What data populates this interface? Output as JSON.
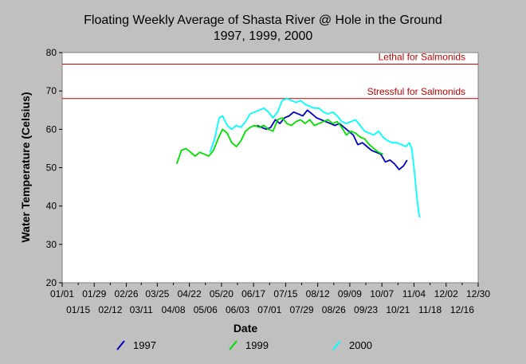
{
  "chart_data": {
    "type": "line",
    "title": "Floating Weekly Average of Shasta River @ Hole in the Ground",
    "subtitle": "1997, 1999, 2000",
    "xlabel": "Date",
    "ylabel": "Water Temperature (Celsius)",
    "x_axis": "day of year (MM/DD)",
    "xlim": [
      "01/01",
      "12/30"
    ],
    "ylim": [
      20,
      80
    ],
    "y_ticks": [
      20,
      30,
      40,
      50,
      60,
      70,
      80
    ],
    "x_ticks_top": [
      "01/01",
      "01/29",
      "02/26",
      "03/25",
      "04/22",
      "05/20",
      "06/17",
      "07/15",
      "08/12",
      "09/09",
      "10/07",
      "11/04",
      "12/02",
      "12/30"
    ],
    "x_ticks_bottom": [
      "01/15",
      "02/12",
      "03/11",
      "04/08",
      "05/06",
      "06/03",
      "07/01",
      "07/29",
      "08/26",
      "09/23",
      "10/21",
      "11/18",
      "12/16"
    ],
    "grid": false,
    "legend_position": "bottom",
    "reference_lines": [
      {
        "label": "Lethal for Salmonids",
        "y": 77,
        "color": "#cc0000"
      },
      {
        "label": "Stressful for Salmonids",
        "y": 68,
        "color": "#cc0000"
      }
    ],
    "series": [
      {
        "name": "1997",
        "color": "#0000c0",
        "points": [
          [
            "06/20",
            61.0
          ],
          [
            "06/24",
            60.5
          ],
          [
            "06/28",
            60.0
          ],
          [
            "07/02",
            60.5
          ],
          [
            "07/06",
            62.5
          ],
          [
            "07/10",
            61.5
          ],
          [
            "07/14",
            63.0
          ],
          [
            "07/18",
            63.5
          ],
          [
            "07/22",
            64.5
          ],
          [
            "07/26",
            64.0
          ],
          [
            "07/30",
            63.5
          ],
          [
            "08/03",
            65.0
          ],
          [
            "08/07",
            64.0
          ],
          [
            "08/11",
            63.0
          ],
          [
            "08/15",
            62.5
          ],
          [
            "08/19",
            62.0
          ],
          [
            "08/23",
            61.5
          ],
          [
            "08/27",
            61.0
          ],
          [
            "08/31",
            61.5
          ],
          [
            "09/04",
            60.5
          ],
          [
            "09/08",
            59.5
          ],
          [
            "09/12",
            58.5
          ],
          [
            "09/16",
            56.0
          ],
          [
            "09/20",
            56.5
          ],
          [
            "09/24",
            55.5
          ],
          [
            "09/28",
            54.5
          ],
          [
            "10/02",
            54.0
          ],
          [
            "10/06",
            53.5
          ],
          [
            "10/10",
            51.5
          ],
          [
            "10/14",
            52.0
          ],
          [
            "10/18",
            51.0
          ],
          [
            "10/22",
            49.5
          ],
          [
            "10/26",
            50.5
          ],
          [
            "10/29",
            52.0
          ]
        ]
      },
      {
        "name": "1999",
        "color": "#00e000",
        "points": [
          [
            "04/11",
            51.0
          ],
          [
            "04/15",
            54.5
          ],
          [
            "04/19",
            55.0
          ],
          [
            "04/23",
            54.0
          ],
          [
            "04/27",
            53.0
          ],
          [
            "05/01",
            54.0
          ],
          [
            "05/05",
            53.5
          ],
          [
            "05/09",
            53.0
          ],
          [
            "05/13",
            54.5
          ],
          [
            "05/17",
            57.5
          ],
          [
            "05/21",
            60.0
          ],
          [
            "05/25",
            59.0
          ],
          [
            "05/29",
            56.5
          ],
          [
            "06/02",
            55.5
          ],
          [
            "06/06",
            57.0
          ],
          [
            "06/10",
            59.5
          ],
          [
            "06/14",
            60.5
          ],
          [
            "06/18",
            61.0
          ],
          [
            "06/22",
            60.5
          ],
          [
            "06/26",
            61.0
          ],
          [
            "06/30",
            60.0
          ],
          [
            "07/04",
            59.5
          ],
          [
            "07/08",
            62.5
          ],
          [
            "07/12",
            63.0
          ],
          [
            "07/16",
            61.5
          ],
          [
            "07/20",
            61.0
          ],
          [
            "07/24",
            62.0
          ],
          [
            "07/28",
            62.5
          ],
          [
            "08/01",
            61.5
          ],
          [
            "08/05",
            62.5
          ],
          [
            "08/09",
            61.0
          ],
          [
            "08/13",
            61.5
          ],
          [
            "08/17",
            62.0
          ],
          [
            "08/21",
            62.5
          ],
          [
            "08/25",
            61.5
          ],
          [
            "08/29",
            62.0
          ],
          [
            "09/02",
            60.5
          ],
          [
            "09/06",
            58.5
          ],
          [
            "09/10",
            59.5
          ],
          [
            "09/14",
            59.0
          ],
          [
            "09/18",
            58.0
          ],
          [
            "09/22",
            57.5
          ],
          [
            "09/26",
            56.0
          ],
          [
            "09/30",
            55.0
          ],
          [
            "10/04",
            54.0
          ],
          [
            "10/08",
            53.5
          ]
        ]
      },
      {
        "name": "2000",
        "color": "#00ffff",
        "points": [
          [
            "05/10",
            54.0
          ],
          [
            "05/14",
            57.5
          ],
          [
            "05/18",
            63.0
          ],
          [
            "05/21",
            63.5
          ],
          [
            "05/25",
            61.0
          ],
          [
            "05/29",
            60.0
          ],
          [
            "06/02",
            61.0
          ],
          [
            "06/06",
            60.5
          ],
          [
            "06/10",
            62.0
          ],
          [
            "06/14",
            64.0
          ],
          [
            "06/18",
            64.5
          ],
          [
            "06/22",
            65.0
          ],
          [
            "06/26",
            65.5
          ],
          [
            "06/30",
            64.5
          ],
          [
            "07/04",
            63.0
          ],
          [
            "07/08",
            64.5
          ],
          [
            "07/12",
            67.5
          ],
          [
            "07/16",
            68.0
          ],
          [
            "07/20",
            67.5
          ],
          [
            "07/24",
            67.0
          ],
          [
            "07/28",
            67.5
          ],
          [
            "08/01",
            66.5
          ],
          [
            "08/05",
            66.0
          ],
          [
            "08/09",
            65.5
          ],
          [
            "08/13",
            65.5
          ],
          [
            "08/17",
            64.5
          ],
          [
            "08/21",
            64.0
          ],
          [
            "08/25",
            64.5
          ],
          [
            "08/29",
            63.5
          ],
          [
            "09/02",
            62.0
          ],
          [
            "09/06",
            61.5
          ],
          [
            "09/10",
            62.0
          ],
          [
            "09/14",
            62.5
          ],
          [
            "09/18",
            61.0
          ],
          [
            "09/22",
            59.5
          ],
          [
            "09/26",
            59.0
          ],
          [
            "09/30",
            58.5
          ],
          [
            "10/04",
            59.5
          ],
          [
            "10/08",
            58.0
          ],
          [
            "10/12",
            57.0
          ],
          [
            "10/16",
            56.5
          ],
          [
            "10/20",
            56.5
          ],
          [
            "10/24",
            56.0
          ],
          [
            "10/28",
            55.5
          ],
          [
            "10/31",
            56.5
          ],
          [
            "11/02",
            55.0
          ],
          [
            "11/04",
            50.0
          ],
          [
            "11/06",
            44.0
          ],
          [
            "11/08",
            38.5
          ],
          [
            "11/09",
            37.0
          ]
        ]
      }
    ]
  }
}
